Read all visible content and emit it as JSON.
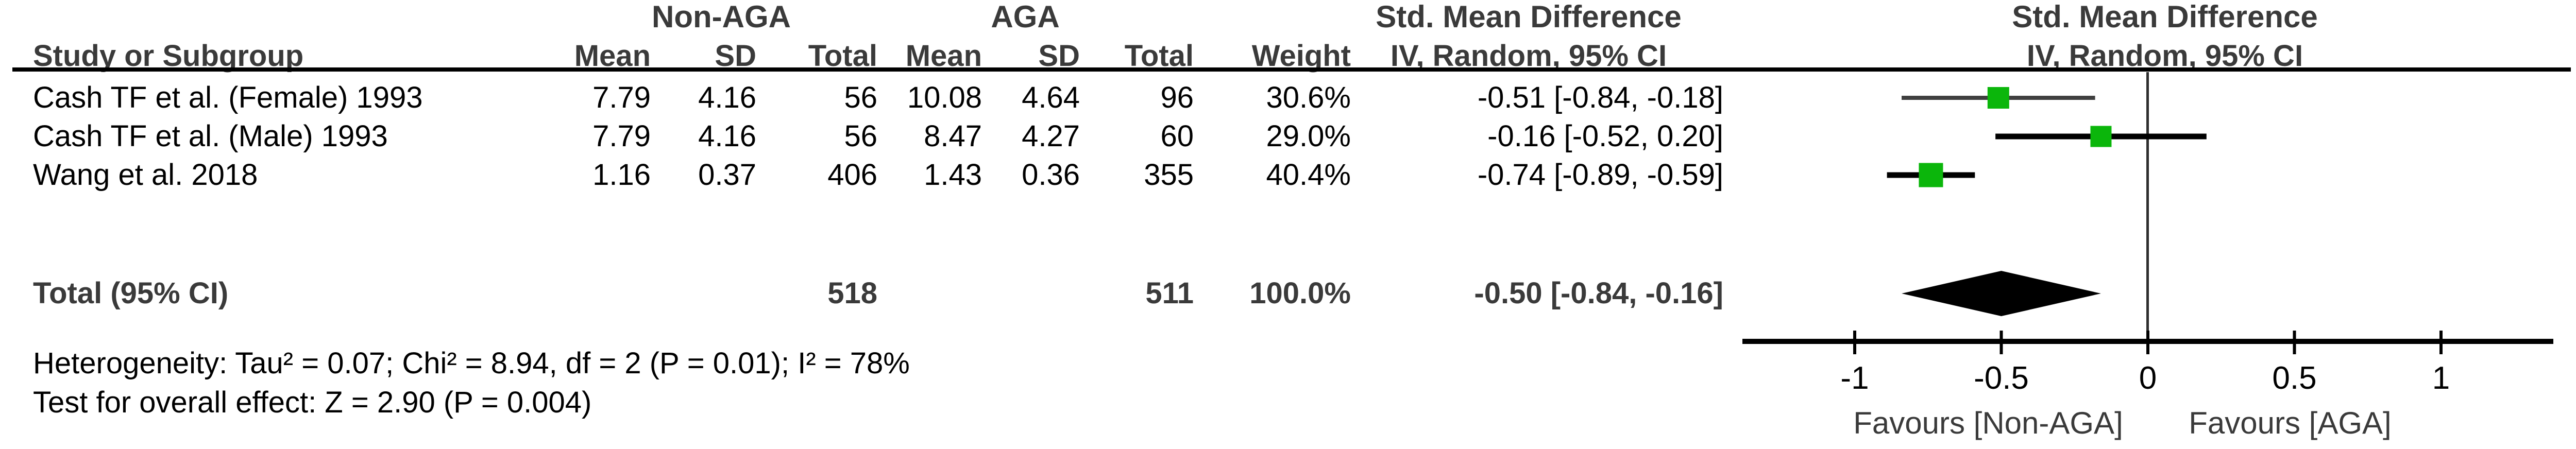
{
  "header": {
    "group1": "Non-AGA",
    "group2": "AGA",
    "study_col": "Study or Subgroup",
    "mean1": "Mean",
    "sd1": "SD",
    "total1": "Total",
    "mean2": "Mean",
    "sd2": "SD",
    "total2": "Total",
    "weight_col": "Weight",
    "effect_col_title": "Std. Mean Difference",
    "effect_col_subtitle": "IV, Random, 95% CI",
    "plot_col_title": "Std. Mean Difference",
    "plot_col_subtitle": "IV, Random, 95% CI"
  },
  "chart_data": {
    "type": "forest",
    "effect_measure": "Std. Mean Difference",
    "model": "IV, Random, 95% CI",
    "rows": [
      {
        "study": "Cash TF et al. (Female) 1993",
        "mean1": "7.79",
        "sd1": "4.16",
        "total1": "56",
        "mean2": "10.08",
        "sd2": "4.64",
        "total2": "96",
        "weight": "30.6%",
        "ci_text": "-0.51 [-0.84, -0.18]",
        "est": -0.51,
        "lo": -0.84,
        "hi": -0.18,
        "weight_pct": 30.6
      },
      {
        "study": "Cash TF et al. (Male) 1993",
        "mean1": "7.79",
        "sd1": "4.16",
        "total1": "56",
        "mean2": "8.47",
        "sd2": "4.27",
        "total2": "60",
        "weight": "29.0%",
        "ci_text": "-0.16 [-0.52, 0.20]",
        "est": -0.16,
        "lo": -0.52,
        "hi": 0.2,
        "weight_pct": 29.0
      },
      {
        "study": "Wang et al. 2018",
        "mean1": "1.16",
        "sd1": "0.37",
        "total1": "406",
        "mean2": "1.43",
        "sd2": "0.36",
        "total2": "355",
        "weight": "40.4%",
        "ci_text": "-0.74 [-0.89, -0.59]",
        "est": -0.74,
        "lo": -0.89,
        "hi": -0.59,
        "weight_pct": 40.4
      }
    ],
    "total": {
      "label": "Total (95% CI)",
      "total1": "518",
      "total2": "511",
      "weight": "100.0%",
      "ci_text": "-0.50 [-0.84, -0.16]",
      "est": -0.5,
      "lo": -0.84,
      "hi": -0.16
    },
    "axis": {
      "ticks": [
        -1,
        -0.5,
        0,
        0.5,
        1
      ],
      "tick_labels": [
        "-1",
        "-0.5",
        "0",
        "0.5",
        "1"
      ],
      "xmin": -1.38,
      "xmax": 1.38,
      "grid": false
    },
    "favours_left": "Favours [Non-AGA]",
    "favours_right": "Favours [AGA]",
    "marker_color": "#0bb60b",
    "diamond_color": "#000000",
    "axis_color": "#000000"
  },
  "footer": {
    "heterogeneity": "Heterogeneity: Tau² = 0.07; Chi² = 8.94, df = 2 (P = 0.01); I² = 78%",
    "overall_effect": "Test for overall effect: Z = 2.90 (P = 0.004)"
  }
}
